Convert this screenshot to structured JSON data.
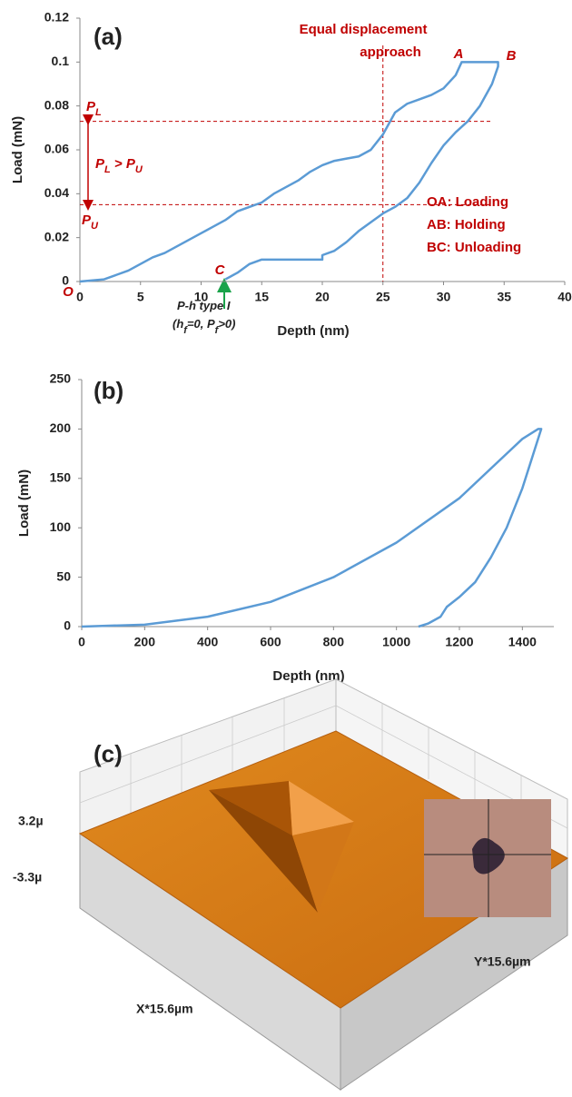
{
  "chart_data": [
    {
      "type": "line",
      "title": "(a)",
      "x_label": "Depth (nm)",
      "y_label": "Load (mN)",
      "xlim": [
        0,
        40
      ],
      "ylim": [
        0,
        0.12
      ],
      "xticks": [
        0,
        5,
        10,
        15,
        20,
        25,
        30,
        35,
        40
      ],
      "yticks": [
        0,
        0.02,
        0.04,
        0.06,
        0.08,
        0.1,
        0.12
      ],
      "series": [
        {
          "color": "#5b9bd5",
          "x": [
            0,
            2,
            3,
            4,
            5,
            6,
            7,
            8,
            9,
            10,
            11,
            12,
            13,
            14,
            15,
            16,
            17,
            18,
            19,
            20,
            21,
            22,
            23,
            24,
            25,
            26,
            27,
            28,
            29,
            30,
            31,
            31.5,
            34.5,
            34.5,
            34,
            33,
            32,
            31,
            30,
            29,
            28,
            27,
            26,
            25,
            24,
            23,
            22,
            21,
            20,
            20,
            15,
            14,
            13,
            12
          ],
          "values": [
            0,
            0.001,
            0.003,
            0.005,
            0.008,
            0.011,
            0.013,
            0.016,
            0.019,
            0.022,
            0.025,
            0.028,
            0.032,
            0.034,
            0.036,
            0.04,
            0.043,
            0.046,
            0.05,
            0.053,
            0.055,
            0.056,
            0.057,
            0.06,
            0.067,
            0.077,
            0.081,
            0.083,
            0.085,
            0.088,
            0.094,
            0.1,
            0.1,
            0.098,
            0.09,
            0.08,
            0.073,
            0.068,
            0.062,
            0.054,
            0.045,
            0.038,
            0.034,
            0.031,
            0.027,
            0.023,
            0.018,
            0.014,
            0.012,
            0.01,
            0.01,
            0.008,
            0.004,
            0.001
          ]
        }
      ],
      "hlines": [
        0.073,
        0.035
      ],
      "vline": 25,
      "annotations": [
        {
          "parts": [
            {
              "text": "Equal displacement"
            }
          ]
        },
        {
          "parts": [
            {
              "text": "approach"
            }
          ]
        },
        {
          "parts": [
            {
              "text": "A"
            }
          ],
          "italic": true
        },
        {
          "parts": [
            {
              "text": "B"
            }
          ],
          "italic": true
        },
        {
          "parts": [
            {
              "text": "C"
            }
          ],
          "italic": true
        },
        {
          "parts": [
            {
              "text": "O"
            }
          ],
          "italic": true
        },
        {
          "parts": [
            {
              "text": "P"
            },
            {
              "text": "L",
              "sub": true
            }
          ],
          "italic": true
        },
        {
          "parts": [
            {
              "text": "P"
            },
            {
              "text": "U",
              "sub": true
            }
          ],
          "italic": true
        },
        {
          "parts": [
            {
              "text": "P"
            },
            {
              "text": "L",
              "sub": true
            },
            {
              "text": " > P"
            },
            {
              "text": "U",
              "sub": true
            }
          ],
          "italic": true
        },
        {
          "parts": [
            {
              "text": "OA: Loading"
            }
          ]
        },
        {
          "parts": [
            {
              "text": "AB: Holding"
            }
          ]
        },
        {
          "parts": [
            {
              "text": "BC: Unloading"
            }
          ]
        },
        {
          "parts": [
            {
              "text": "P-h type I"
            }
          ],
          "italic": true,
          "dark": true
        },
        {
          "parts": [
            {
              "text": "(h"
            },
            {
              "text": "f",
              "sub": true
            },
            {
              "text": "=0, P"
            },
            {
              "text": "f",
              "sub": true
            },
            {
              "text": ">0)"
            }
          ],
          "italic": true,
          "dark": true
        }
      ]
    },
    {
      "type": "line",
      "title": "(b)",
      "x_label": "Depth (nm)",
      "y_label": "Load (mN)",
      "xlim": [
        0,
        1500
      ],
      "ylim": [
        0,
        250
      ],
      "xticks": [
        0,
        200,
        400,
        600,
        800,
        1000,
        1200,
        1400
      ],
      "yticks": [
        0,
        50,
        100,
        150,
        200,
        250
      ],
      "series": [
        {
          "color": "#5b9bd5",
          "x": [
            0,
            200,
            400,
            600,
            800,
            1000,
            1200,
            1350,
            1400,
            1450,
            1460,
            1440,
            1400,
            1350,
            1300,
            1250,
            1200,
            1160,
            1140,
            1100,
            1070
          ],
          "values": [
            0,
            2,
            10,
            25,
            50,
            85,
            130,
            175,
            190,
            200,
            200,
            180,
            140,
            100,
            70,
            45,
            30,
            20,
            10,
            3,
            0
          ]
        }
      ]
    }
  ],
  "surface_panel": {
    "title": "(c)",
    "z_labels": [
      "3.2µ",
      "-3.3µ"
    ],
    "x_label": "X*15.6µm",
    "y_label": "Y*15.6µm"
  }
}
